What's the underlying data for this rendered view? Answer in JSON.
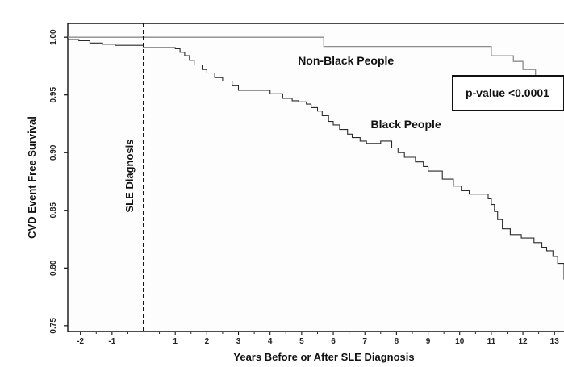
{
  "chart_data": {
    "type": "line",
    "title": "",
    "xlabel": "Years Before or After SLE Diagnosis",
    "ylabel": "CVD Event Free Survival",
    "xlim": [
      -2.4,
      13.3
    ],
    "ylim": [
      0.745,
      1.012
    ],
    "x_ticks": [
      -2,
      -1,
      1,
      2,
      3,
      4,
      5,
      6,
      7,
      8,
      9,
      10,
      11,
      12,
      13
    ],
    "x_tick_labels": [
      "-2",
      "-1",
      "1",
      "2",
      "3",
      "4",
      "5",
      "6",
      "7",
      "8",
      "9",
      "10",
      "11",
      "12",
      "13"
    ],
    "y_ticks": [
      0.75,
      0.8,
      0.85,
      0.9,
      0.95,
      1.0
    ],
    "y_tick_labels": [
      "0.75",
      "0.80",
      "0.85",
      "0.90",
      "0.95",
      "1.00"
    ],
    "grid": false,
    "legend": "none",
    "series": [
      {
        "name": "Non-Black People",
        "color": "#8c8c8c",
        "step": true,
        "x": [
          -2.4,
          5.7,
          11.0,
          11.7,
          12.0,
          12.4,
          13.3
        ],
        "y": [
          1.0,
          0.992,
          0.984,
          0.979,
          0.972,
          0.963,
          0.963
        ]
      },
      {
        "name": "Black People",
        "color": "#2a2a2a",
        "step": true,
        "x": [
          -2.4,
          -2.05,
          -1.7,
          -1.3,
          -0.9,
          0.0,
          1.0,
          1.15,
          1.3,
          1.45,
          1.6,
          1.85,
          2.0,
          2.25,
          2.5,
          2.8,
          3.0,
          3.5,
          4.0,
          4.4,
          4.7,
          4.9,
          5.15,
          5.3,
          5.5,
          5.65,
          5.85,
          6.0,
          6.2,
          6.45,
          6.6,
          6.85,
          7.05,
          7.5,
          7.85,
          8.05,
          8.25,
          8.6,
          8.85,
          9.0,
          9.45,
          9.8,
          10.05,
          10.3,
          10.6,
          10.9,
          11.0,
          11.1,
          11.2,
          11.35,
          11.6,
          11.95,
          12.35,
          12.6,
          12.75,
          12.95,
          13.1,
          13.3
        ],
        "y": [
          0.998,
          0.997,
          0.995,
          0.994,
          0.993,
          0.991,
          0.99,
          0.987,
          0.984,
          0.98,
          0.976,
          0.972,
          0.969,
          0.965,
          0.962,
          0.958,
          0.954,
          0.954,
          0.951,
          0.947,
          0.945,
          0.944,
          0.942,
          0.939,
          0.936,
          0.932,
          0.927,
          0.924,
          0.92,
          0.916,
          0.913,
          0.91,
          0.908,
          0.91,
          0.904,
          0.9,
          0.896,
          0.892,
          0.888,
          0.884,
          0.877,
          0.871,
          0.867,
          0.864,
          0.864,
          0.86,
          0.855,
          0.849,
          0.842,
          0.834,
          0.829,
          0.826,
          0.822,
          0.818,
          0.815,
          0.81,
          0.804,
          0.79
        ]
      }
    ],
    "annotations": [
      {
        "text": "SLE Diagnosis",
        "x": 0.0,
        "orientation": "vertical",
        "line_style": "dashed"
      },
      {
        "text": "Non-Black People",
        "x": 6.4,
        "y": 0.982
      },
      {
        "text": "Black People",
        "x": 8.3,
        "y": 0.914
      },
      {
        "text": "p-value <0.0001",
        "x": 12.0,
        "y": 0.955,
        "boxed": true
      }
    ]
  }
}
